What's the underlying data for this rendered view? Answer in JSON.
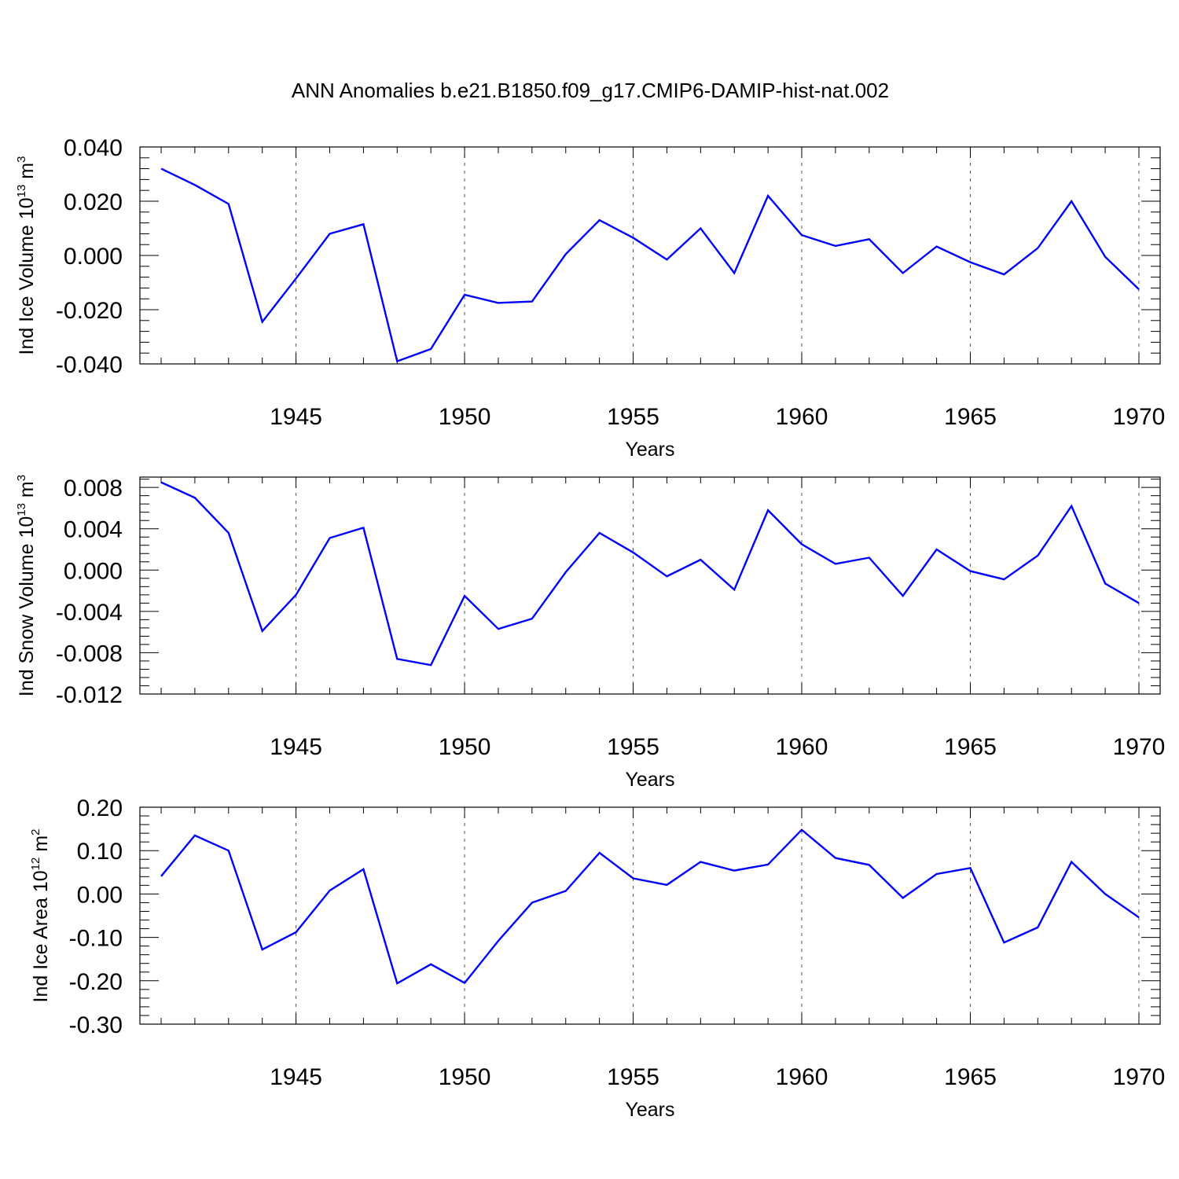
{
  "title": "ANN Anomalies b.e21.B1850.f09_g17.CMIP6-DAMIP-hist-nat.002",
  "colors": {
    "line": "#0000ff",
    "axis": "#000000",
    "grid": "#555555"
  },
  "chart_data": [
    {
      "type": "line",
      "xlabel": "Years",
      "ylabel_parts": [
        "Ind Ice Volume 10",
        "13",
        " m",
        "3"
      ],
      "xlim": [
        1941,
        1970
      ],
      "ylim": [
        -0.04,
        0.04
      ],
      "yticks": [
        -0.04,
        -0.02,
        0.0,
        0.02,
        0.04
      ],
      "ytick_labels": [
        "-0.040",
        "-0.020",
        "0.000",
        "0.020",
        "0.040"
      ],
      "xticks": [
        1945,
        1950,
        1955,
        1960,
        1965,
        1970
      ],
      "xtick_labels": [
        "1945",
        "1950",
        "1955",
        "1960",
        "1965",
        "1970"
      ],
      "grid": "dashed vertical at major x ticks",
      "x": [
        1941,
        1942,
        1943,
        1944,
        1945,
        1946,
        1947,
        1948,
        1949,
        1950,
        1951,
        1952,
        1953,
        1954,
        1955,
        1956,
        1957,
        1958,
        1959,
        1960,
        1961,
        1962,
        1963,
        1964,
        1965,
        1966,
        1967,
        1968,
        1969,
        1970
      ],
      "values": [
        0.032,
        0.026,
        0.019,
        -0.0245,
        -0.0085,
        0.008,
        0.0115,
        -0.039,
        -0.0345,
        -0.0145,
        -0.0175,
        -0.017,
        0.0005,
        0.013,
        0.0065,
        -0.0015,
        0.01,
        -0.0065,
        0.022,
        0.0075,
        0.0035,
        0.006,
        -0.0065,
        0.0033,
        -0.0025,
        -0.007,
        0.0027,
        0.02,
        -0.0005,
        -0.0125
      ]
    },
    {
      "type": "line",
      "xlabel": "Years",
      "ylabel_parts": [
        "Ind Snow Volume 10",
        "13",
        " m",
        "3"
      ],
      "xlim": [
        1941,
        1970
      ],
      "ylim": [
        -0.012,
        0.009
      ],
      "yticks": [
        -0.012,
        -0.008,
        -0.004,
        0.0,
        0.004,
        0.008
      ],
      "ytick_labels": [
        "-0.012",
        "-0.008",
        "-0.004",
        "0.000",
        "0.004",
        "0.008"
      ],
      "xticks": [
        1945,
        1950,
        1955,
        1960,
        1965,
        1970
      ],
      "xtick_labels": [
        "1945",
        "1950",
        "1955",
        "1960",
        "1965",
        "1970"
      ],
      "grid": "dashed vertical at major x ticks",
      "x": [
        1941,
        1942,
        1943,
        1944,
        1945,
        1946,
        1947,
        1948,
        1949,
        1950,
        1951,
        1952,
        1953,
        1954,
        1955,
        1956,
        1957,
        1958,
        1959,
        1960,
        1961,
        1962,
        1963,
        1964,
        1965,
        1966,
        1967,
        1968,
        1969,
        1970
      ],
      "values": [
        0.0085,
        0.007,
        0.0036,
        -0.0059,
        -0.0024,
        0.0031,
        0.0041,
        -0.0086,
        -0.0092,
        -0.0025,
        -0.0057,
        -0.0047,
        -0.0002,
        0.0036,
        0.0017,
        -0.0006,
        0.001,
        -0.0019,
        0.0058,
        0.0025,
        0.0006,
        0.0012,
        -0.0025,
        0.002,
        -0.0001,
        -0.0009,
        0.0014,
        0.0062,
        -0.0013,
        -0.0032
      ]
    },
    {
      "type": "line",
      "xlabel": "Years",
      "ylabel_parts": [
        "Ind Ice Area 10",
        "12",
        " m",
        "2"
      ],
      "xlim": [
        1941,
        1970
      ],
      "ylim": [
        -0.3,
        0.2
      ],
      "yticks": [
        -0.3,
        -0.2,
        -0.1,
        0.0,
        0.1,
        0.2
      ],
      "ytick_labels": [
        "-0.30",
        "-0.20",
        "-0.10",
        "0.00",
        "0.10",
        "0.20"
      ],
      "xticks": [
        1945,
        1950,
        1955,
        1960,
        1965,
        1970
      ],
      "xtick_labels": [
        "1945",
        "1950",
        "1955",
        "1960",
        "1965",
        "1970"
      ],
      "grid": "dashed vertical at major x ticks",
      "x": [
        1941,
        1942,
        1943,
        1944,
        1945,
        1946,
        1947,
        1948,
        1949,
        1950,
        1951,
        1952,
        1953,
        1954,
        1955,
        1956,
        1957,
        1958,
        1959,
        1960,
        1961,
        1962,
        1963,
        1964,
        1965,
        1966,
        1967,
        1968,
        1969,
        1970
      ],
      "values": [
        0.041,
        0.135,
        0.1,
        -0.128,
        -0.088,
        0.008,
        0.057,
        -0.206,
        -0.162,
        -0.205,
        -0.108,
        -0.02,
        0.007,
        0.095,
        0.036,
        0.021,
        0.074,
        0.054,
        0.068,
        0.148,
        0.083,
        0.067,
        -0.009,
        0.046,
        0.06,
        -0.112,
        -0.077,
        0.074,
        0.0,
        -0.054
      ]
    }
  ]
}
